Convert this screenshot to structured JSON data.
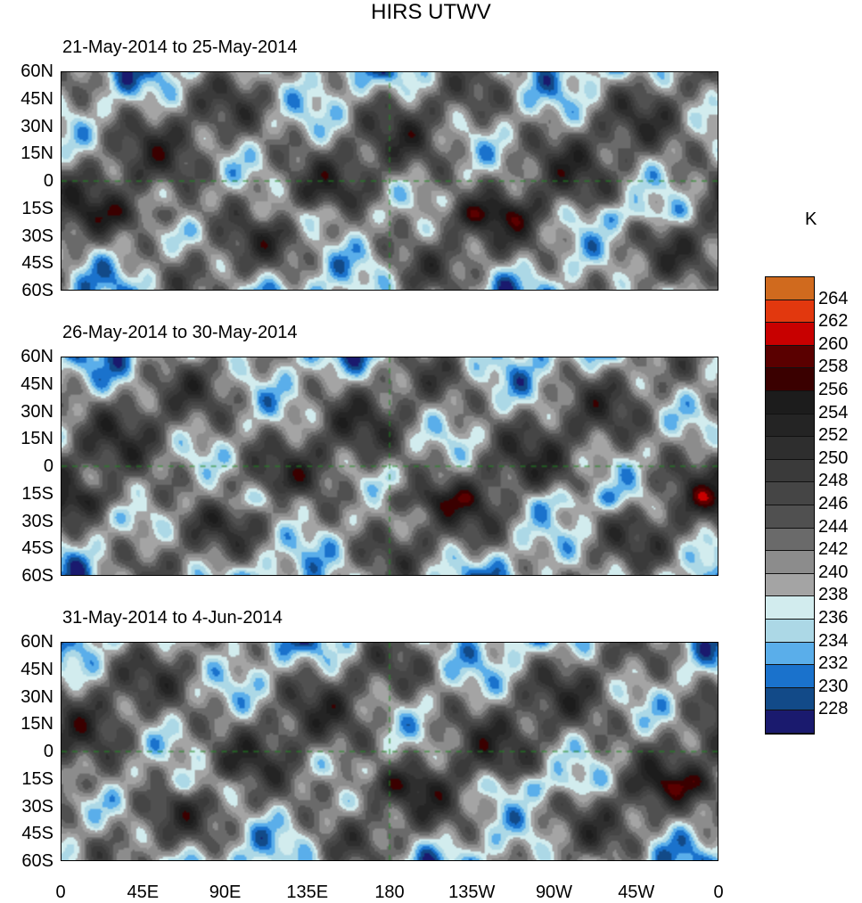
{
  "title": "HIRS UTWV",
  "panels": [
    {
      "title": "21-May-2014 to 25-May-2014"
    },
    {
      "title": "26-May-2014 to 30-May-2014"
    },
    {
      "title": "31-May-2014 to 4-Jun-2014"
    }
  ],
  "y_ticks": [
    "60N",
    "45N",
    "30N",
    "15N",
    "0",
    "15S",
    "30S",
    "45S",
    "60S"
  ],
  "x_ticks": [
    "0",
    "45E",
    "90E",
    "135E",
    "180",
    "135W",
    "90W",
    "45W",
    "0"
  ],
  "colorbar": {
    "unit": "K",
    "labels": [
      "264",
      "262",
      "260",
      "258",
      "256",
      "254",
      "252",
      "250",
      "248",
      "246",
      "244",
      "242",
      "240",
      "238",
      "236",
      "234",
      "232",
      "230",
      "228"
    ],
    "colors": [
      "#d06a1e",
      "#e2380e",
      "#c80000",
      "#5a0000",
      "#3a0000",
      "#1c1c1c",
      "#242424",
      "#2e2e2e",
      "#3a3a3a",
      "#454545",
      "#505050",
      "#6a6a6a",
      "#8c8c8c",
      "#a4a4a4",
      "#d2ecee",
      "#acd8e6",
      "#5aaeea",
      "#1a72cc",
      "#124a88",
      "#1a1a6e"
    ]
  },
  "chart_data": {
    "type": "heatmap",
    "title": "HIRS UTWV",
    "variable_unit": "K",
    "levels": [
      228,
      230,
      232,
      234,
      236,
      238,
      240,
      242,
      244,
      246,
      248,
      250,
      252,
      254,
      256,
      258,
      260,
      262,
      264
    ],
    "lon_range": [
      0,
      360
    ],
    "lat_range": [
      -60,
      60
    ]
  }
}
